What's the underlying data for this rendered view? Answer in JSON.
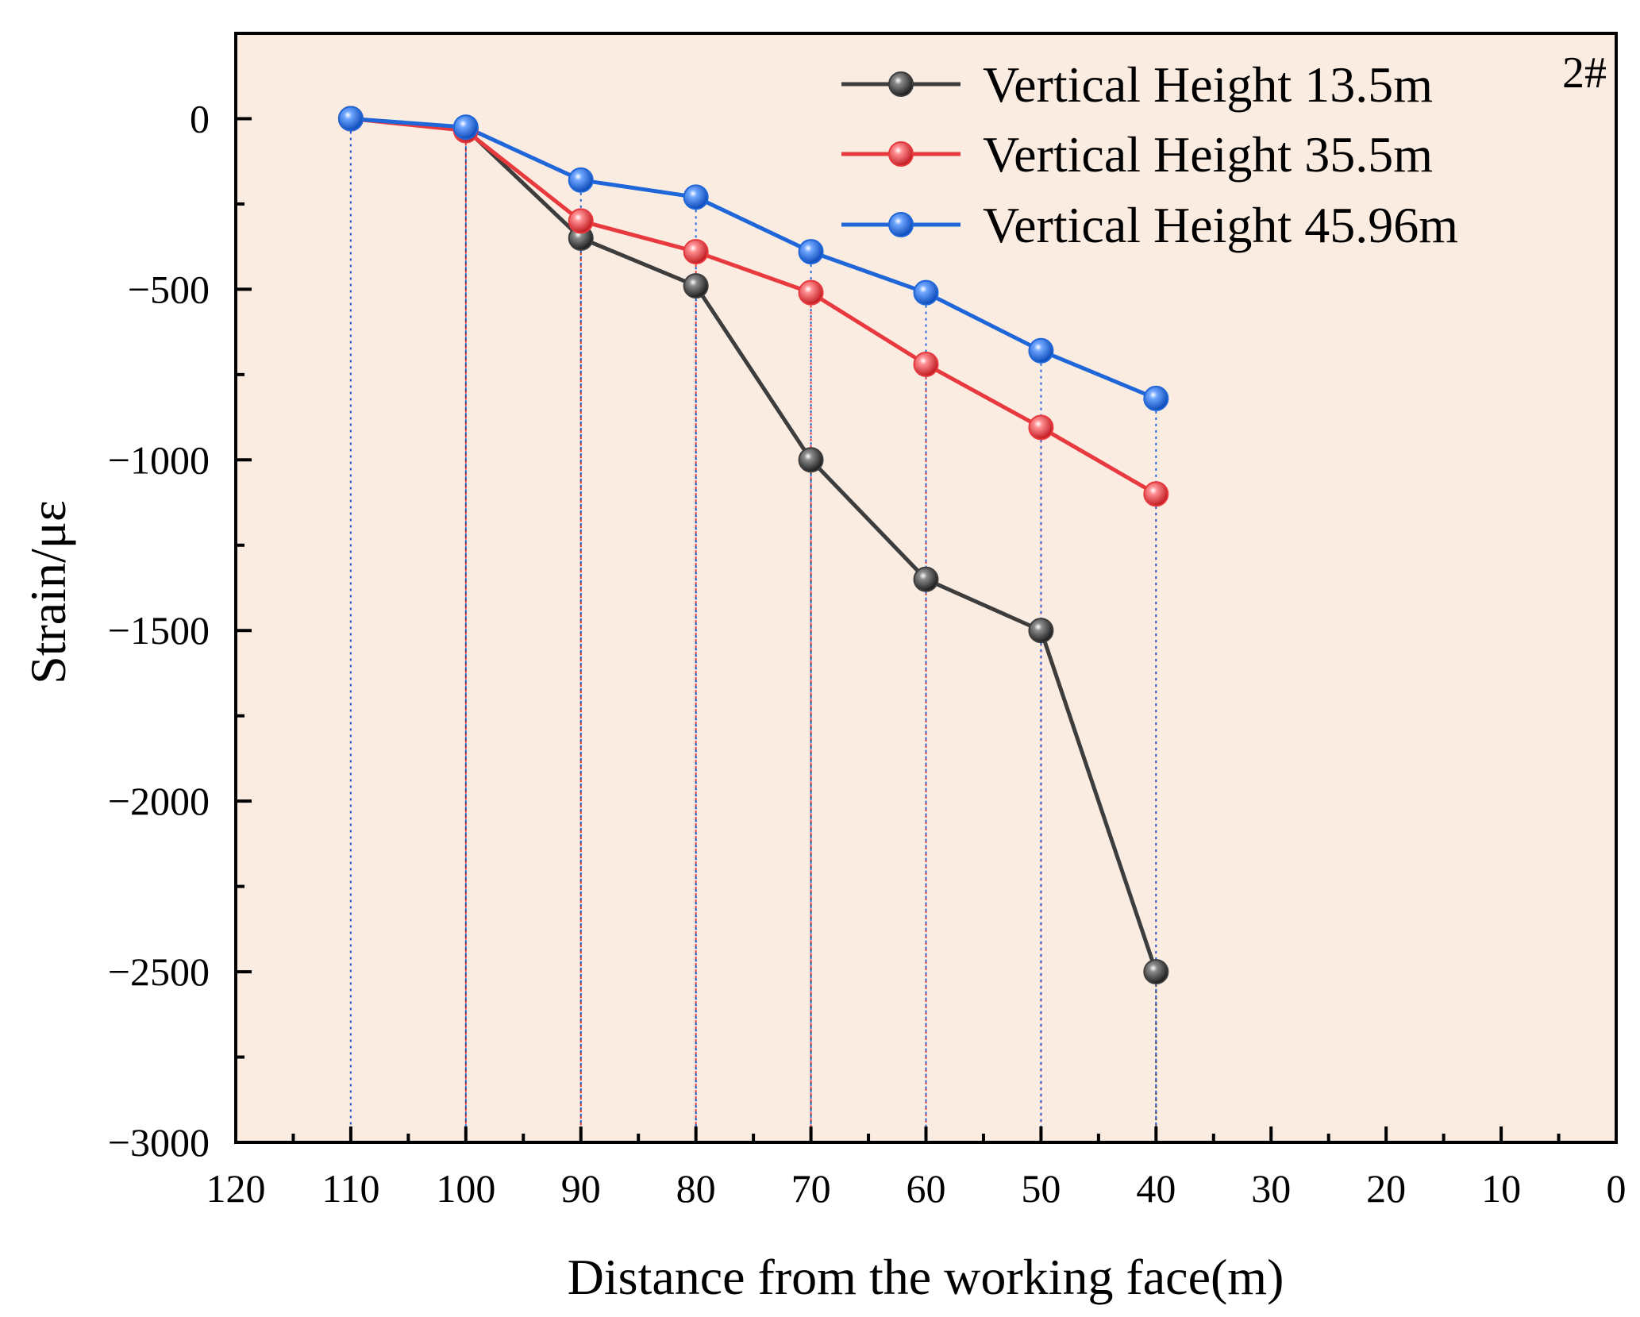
{
  "chart_data": {
    "type": "line",
    "title": "",
    "panel_label": "2#",
    "xlabel": "Distance from the working face(m)",
    "ylabel": "Strain/με",
    "xlim": [
      120,
      0
    ],
    "ylim": [
      -3000,
      250
    ],
    "x_ticks": [
      120,
      110,
      100,
      90,
      80,
      70,
      60,
      50,
      40,
      30,
      20,
      10,
      0
    ],
    "y_ticks": [
      0,
      -500,
      -1000,
      -1500,
      -2000,
      -2500,
      -3000
    ],
    "x_tick_labels": [
      "120",
      "110",
      "100",
      "90",
      "80",
      "70",
      "60",
      "50",
      "40",
      "30",
      "20",
      "10",
      "0"
    ],
    "y_tick_labels": [
      "0",
      "−500",
      "−1000",
      "−1500",
      "−2000",
      "−2500",
      "−3000"
    ],
    "x": [
      110,
      100,
      90,
      80,
      70,
      60,
      50,
      40
    ],
    "series": [
      {
        "name": "Vertical Height 13.5m",
        "color": "#3d3d3d",
        "values": [
          0,
          -30,
          -350,
          -490,
          -1000,
          -1350,
          -1500,
          -2500
        ]
      },
      {
        "name": "Vertical Height 35.5m",
        "color": "#e8393e",
        "values": [
          0,
          -35,
          -300,
          -390,
          -510,
          -720,
          -905,
          -1100
        ]
      },
      {
        "name": "Vertical Height 45.96m",
        "color": "#1f66d9",
        "values": [
          0,
          -25,
          -180,
          -230,
          -390,
          -510,
          -680,
          -820
        ]
      }
    ],
    "legend": "top-right",
    "grid": false,
    "background": "#fbece1",
    "drop_lines": true
  }
}
